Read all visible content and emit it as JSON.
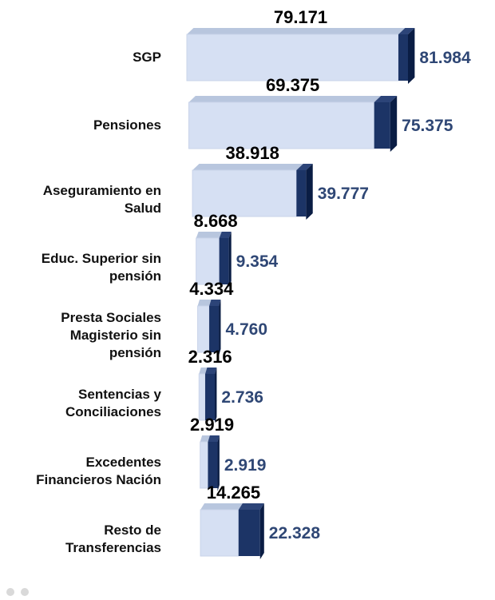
{
  "chart_data": {
    "type": "bar",
    "orientation": "horizontal",
    "style": "3d-stacked",
    "categories": [
      "SGP",
      "Pensiones",
      "Aseguramiento en\nSalud",
      "Educ. Superior sin\npensión",
      "Presta Sociales\nMagisterio sin\npensión",
      "Sentencias y\nConciliaciones",
      "Excedentes\nFinancieros Nación",
      "Resto de\nTransferencias"
    ],
    "series": [
      {
        "values": [
          79171,
          69375,
          38918,
          8668,
          4334,
          2316,
          2919,
          14265
        ],
        "labels": [
          "79.171",
          "69.375",
          "38.918",
          "8.668",
          "4.334",
          "2.316",
          "2.919",
          "14.265"
        ]
      },
      {
        "values": [
          81984,
          75375,
          39777,
          9354,
          4760,
          2736,
          2919,
          22328
        ],
        "labels": [
          "81.984",
          "75.375",
          "39.777",
          "9.354",
          "4.760",
          "2.736",
          "2.919",
          "22.328"
        ]
      }
    ],
    "colors": {
      "front": "#d6e0f3",
      "top": "#b8c6de",
      "increment_front": "#1c3466",
      "increment_side": "#0a1d44",
      "label_b": "#2f4775"
    },
    "legend": "none",
    "grid": false
  }
}
